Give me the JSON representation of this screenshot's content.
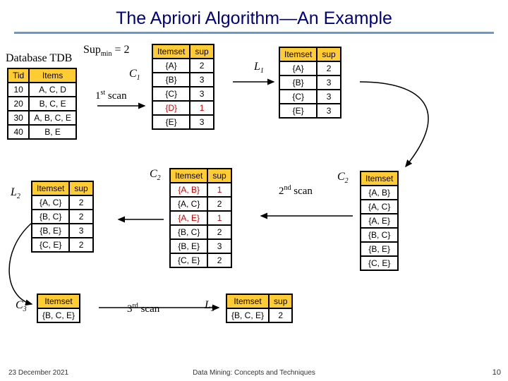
{
  "title": "The Apriori Algorithm—An Example",
  "supmin_label_pre": "Sup",
  "supmin_label_sub": "min",
  "supmin_label_post": " = 2",
  "db_label": "Database TDB",
  "scan1": "1",
  "scan1_suffix": "st",
  "scan1_word": " scan",
  "scan2": "2",
  "scan2_suffix": "nd",
  "scan2_word": " scan",
  "scan3": "3",
  "scan3_suffix": "rd",
  "scan3_word": " scan",
  "labels": {
    "C1": "C",
    "C1s": "1",
    "L1": "L",
    "L1s": "1",
    "C2a": "C",
    "C2as": "2",
    "C2b": "C",
    "C2bs": "2",
    "L2": "L",
    "L2s": "2",
    "C3": "C",
    "C3s": "3",
    "L3": "L",
    "L3s": "3"
  },
  "tdb": {
    "cols": [
      "Tid",
      "Items"
    ],
    "rows": [
      [
        "10",
        "A, C, D"
      ],
      [
        "20",
        "B, C, E"
      ],
      [
        "30",
        "A, B, C, E"
      ],
      [
        "40",
        "B, E"
      ]
    ]
  },
  "c1": {
    "cols": [
      "Itemset",
      "sup"
    ],
    "rows": [
      {
        "cells": [
          "{A}",
          "2"
        ],
        "red": false
      },
      {
        "cells": [
          "{B}",
          "3"
        ],
        "red": false
      },
      {
        "cells": [
          "{C}",
          "3"
        ],
        "red": false
      },
      {
        "cells": [
          "{D}",
          "1"
        ],
        "red": true
      },
      {
        "cells": [
          "{E}",
          "3"
        ],
        "red": false
      }
    ]
  },
  "l1": {
    "cols": [
      "Itemset",
      "sup"
    ],
    "rows": [
      [
        "{A}",
        "2"
      ],
      [
        "{B}",
        "3"
      ],
      [
        "{C}",
        "3"
      ],
      [
        "{E}",
        "3"
      ]
    ]
  },
  "c2list": {
    "cols": [
      "Itemset"
    ],
    "rows": [
      [
        "{A, B}"
      ],
      [
        "{A, C}"
      ],
      [
        "{A, E}"
      ],
      [
        "{B, C}"
      ],
      [
        "{B, E}"
      ],
      [
        "{C, E}"
      ]
    ]
  },
  "c2sup": {
    "cols": [
      "Itemset",
      "sup"
    ],
    "rows": [
      {
        "cells": [
          "{A, B}",
          "1"
        ],
        "red": true
      },
      {
        "cells": [
          "{A, C}",
          "2"
        ],
        "red": false
      },
      {
        "cells": [
          "{A, E}",
          "1"
        ],
        "red": true
      },
      {
        "cells": [
          "{B, C}",
          "2"
        ],
        "red": false
      },
      {
        "cells": [
          "{B, E}",
          "3"
        ],
        "red": false
      },
      {
        "cells": [
          "{C, E}",
          "2"
        ],
        "red": false
      }
    ]
  },
  "l2": {
    "cols": [
      "Itemset",
      "sup"
    ],
    "rows": [
      [
        "{A, C}",
        "2"
      ],
      [
        "{B, C}",
        "2"
      ],
      [
        "{B, E}",
        "3"
      ],
      [
        "{C, E}",
        "2"
      ]
    ]
  },
  "c3": {
    "cols": [
      "Itemset"
    ],
    "rows": [
      [
        "{B, C, E}"
      ]
    ]
  },
  "l3": {
    "cols": [
      "Itemset",
      "sup"
    ],
    "rows": [
      [
        "{B, C, E}",
        "2"
      ]
    ]
  },
  "footer": {
    "date": "23 December 2021",
    "center": "Data Mining: Concepts and Techniques",
    "page": "10"
  },
  "style": {
    "header_bg": "#ffcc33",
    "red_text": "#cc0000",
    "title_color": "#000080",
    "underline_color": "#6699cc"
  }
}
